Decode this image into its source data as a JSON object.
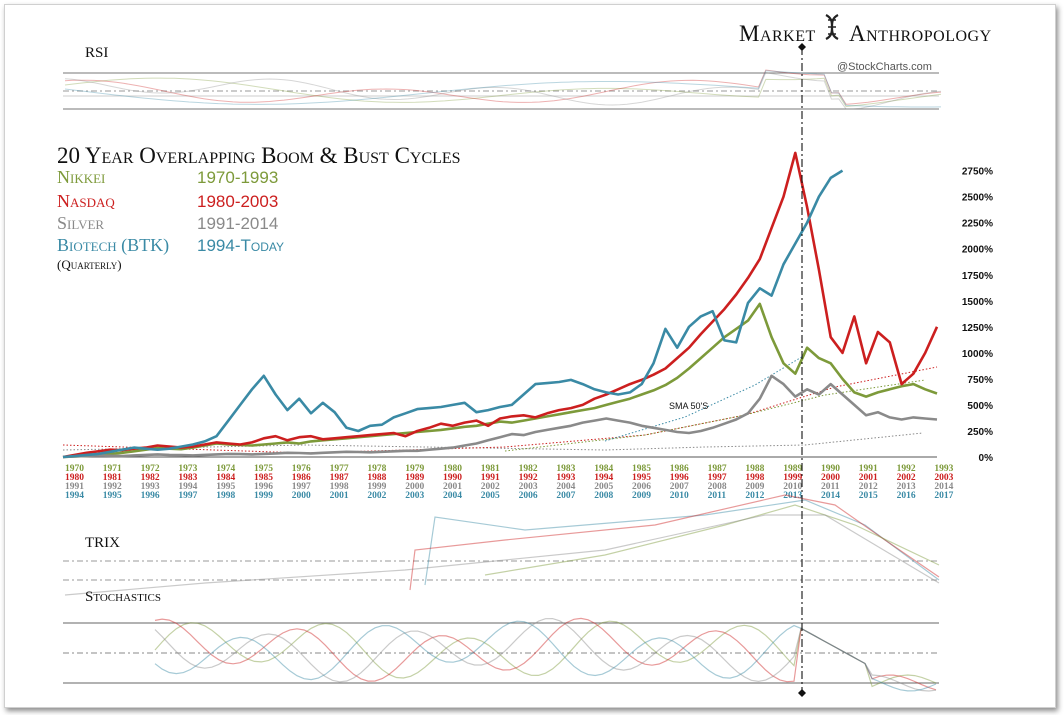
{
  "brand": {
    "left": "Market",
    "right": "Anthropology"
  },
  "credit": "@StockCharts.com",
  "panels": {
    "rsi": "RSI",
    "trix": "TRIX",
    "stoch": "Stochastics"
  },
  "sma_label": "SMA 50'S",
  "colors": {
    "nikkei": "#7d9a3a",
    "nasdaq": "#cc1f1f",
    "silver": "#8a8a8a",
    "biotech": "#3a8aa5"
  },
  "chart_data": {
    "type": "line",
    "title": "20 Year Overlapping Boom & Bust Cycles",
    "subtitle": "(Quarterly)",
    "ylim": [
      0,
      2900
    ],
    "y_ticks": [
      "0%",
      "250%",
      "500%",
      "750%",
      "1000%",
      "1250%",
      "1500%",
      "1750%",
      "2000%",
      "2250%",
      "2500%",
      "2750%"
    ],
    "x_axis_rows": [
      {
        "name": "Nikkei",
        "labels": [
          "1970",
          "1971",
          "1972",
          "1973",
          "1974",
          "1975",
          "1976",
          "1977",
          "1978",
          "1979",
          "1980",
          "1981",
          "1982",
          "1983",
          "1984",
          "1985",
          "1986",
          "1987",
          "1988",
          "1989",
          "1990",
          "1991",
          "1992",
          "1993"
        ]
      },
      {
        "name": "Nasdaq",
        "labels": [
          "1980",
          "1981",
          "1982",
          "1983",
          "1984",
          "1985",
          "1986",
          "1987",
          "1988",
          "1989",
          "1990",
          "1991",
          "1992",
          "1993",
          "1994",
          "1995",
          "1996",
          "1997",
          "1998",
          "1999",
          "2000",
          "2001",
          "2002",
          "2003"
        ]
      },
      {
        "name": "Silver",
        "labels": [
          "1991",
          "1992",
          "1993",
          "1994",
          "1995",
          "1996",
          "1997",
          "1998",
          "1999",
          "2000",
          "2001",
          "2002",
          "2003",
          "2004",
          "2005",
          "2006",
          "2007",
          "2008",
          "2009",
          "2010",
          "2011",
          "2012",
          "2013",
          "2014"
        ]
      },
      {
        "name": "Biotech (BTK)",
        "labels": [
          "1994",
          "1995",
          "1996",
          "1997",
          "1998",
          "1999",
          "2000",
          "2001",
          "2002",
          "2003",
          "2004",
          "2005",
          "2006",
          "2007",
          "2008",
          "2009",
          "2010",
          "2011",
          "2012",
          "2013",
          "2014",
          "2015",
          "2016",
          "2017"
        ]
      }
    ],
    "series": [
      {
        "name": "Nikkei",
        "years": "1970-1993",
        "values": [
          0,
          5,
          10,
          20,
          30,
          40,
          55,
          70,
          85,
          80,
          75,
          90,
          110,
          130,
          120,
          115,
          110,
          120,
          130,
          140,
          130,
          150,
          160,
          170,
          180,
          190,
          200,
          210,
          220,
          230,
          240,
          250,
          260,
          275,
          290,
          300,
          320,
          340,
          330,
          350,
          370,
          390,
          410,
          430,
          450,
          470,
          500,
          530,
          560,
          600,
          640,
          690,
          760,
          850,
          950,
          1050,
          1150,
          1230,
          1310,
          1470,
          1150,
          900,
          800,
          1050,
          950,
          900,
          750,
          620,
          580,
          620,
          650,
          680,
          700,
          650,
          610
        ]
      },
      {
        "name": "Nasdaq",
        "years": "1980-2003",
        "values": [
          0,
          20,
          40,
          55,
          70,
          65,
          80,
          90,
          110,
          100,
          90,
          100,
          120,
          140,
          130,
          120,
          140,
          180,
          200,
          160,
          190,
          200,
          170,
          180,
          190,
          200,
          210,
          220,
          230,
          200,
          250,
          280,
          320,
          300,
          330,
          350,
          300,
          370,
          390,
          400,
          380,
          420,
          450,
          470,
          500,
          560,
          600,
          650,
          700,
          740,
          790,
          850,
          950,
          1050,
          1180,
          1300,
          1420,
          1560,
          1720,
          1900,
          2200,
          2500,
          2920,
          2400,
          1800,
          1150,
          1000,
          1350,
          900,
          1200,
          1100,
          700,
          800,
          1000,
          1250
        ]
      },
      {
        "name": "Silver",
        "years": "1991-2014",
        "values": [
          0,
          5,
          10,
          15,
          12,
          10,
          15,
          20,
          25,
          20,
          18,
          15,
          20,
          25,
          30,
          28,
          25,
          30,
          35,
          40,
          38,
          35,
          40,
          45,
          50,
          48,
          45,
          50,
          55,
          60,
          60,
          70,
          80,
          90,
          110,
          130,
          160,
          190,
          220,
          210,
          240,
          260,
          280,
          300,
          330,
          350,
          370,
          350,
          330,
          300,
          280,
          260,
          240,
          230,
          250,
          280,
          320,
          360,
          420,
          560,
          780,
          700,
          580,
          650,
          600,
          700,
          600,
          500,
          400,
          430,
          380,
          360,
          380,
          370,
          360
        ]
      },
      {
        "name": "Biotech (BTK)",
        "years": "1994-Today",
        "values": [
          0,
          10,
          20,
          30,
          50,
          70,
          90,
          80,
          70,
          80,
          100,
          120,
          150,
          200,
          350,
          500,
          650,
          780,
          600,
          450,
          560,
          420,
          520,
          430,
          280,
          250,
          300,
          310,
          380,
          420,
          460,
          470,
          480,
          500,
          520,
          430,
          450,
          480,
          500,
          600,
          700,
          710,
          720,
          740,
          700,
          650,
          620,
          600,
          620,
          700,
          900,
          1230,
          1050,
          1250,
          1350,
          1400,
          1120,
          1100,
          1480,
          1620,
          1550,
          1850,
          2050,
          2250,
          2500,
          2680,
          2750
        ]
      }
    ]
  }
}
